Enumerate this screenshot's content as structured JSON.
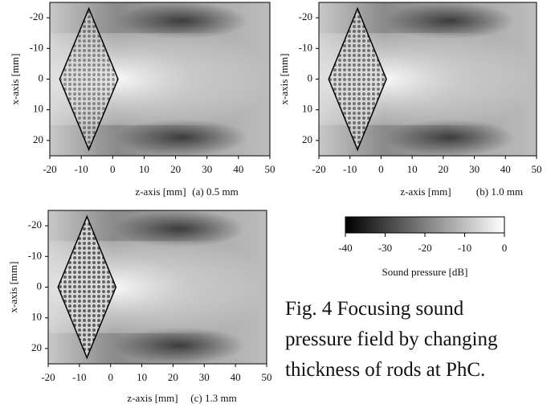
{
  "panels": [
    {
      "xlabel": "z-axis [mm]",
      "ylabel": "x-axis [mm]",
      "sublabel": "(a) 0.5 mm",
      "xlim": [
        -20,
        50
      ],
      "ylim": [
        -25,
        25
      ],
      "xticks": [
        -20,
        -10,
        0,
        10,
        20,
        30,
        40,
        50
      ],
      "yticks": [
        -20,
        -10,
        0,
        10,
        20
      ]
    },
    {
      "xlabel": "z-axis [mm]",
      "ylabel": "x-axis [mm]",
      "sublabel": "(b) 1.0 mm",
      "xlim": [
        -20,
        50
      ],
      "ylim": [
        -25,
        25
      ],
      "xticks": [
        -20,
        -10,
        0,
        10,
        20,
        30,
        40,
        50
      ],
      "yticks": [
        -20,
        -10,
        0,
        10,
        20
      ]
    },
    {
      "xlabel": "z-axis [mm]",
      "ylabel": "x-axis [mm]",
      "sublabel": "(c) 1.3 mm",
      "xlim": [
        -20,
        50
      ],
      "ylim": [
        -25,
        25
      ],
      "xticks": [
        -20,
        -10,
        0,
        10,
        20,
        30,
        40,
        50
      ],
      "yticks": [
        -20,
        -10,
        0,
        10,
        20
      ]
    }
  ],
  "colorbar": {
    "label": "Sound pressure [dB]",
    "lim": [
      -40,
      0
    ],
    "ticks": [
      -40,
      -30,
      -20,
      -10,
      0
    ]
  },
  "caption": [
    "Fig. 4 Focusing sound",
    "pressure field by changing",
    "thickness of rods at PhC."
  ]
}
